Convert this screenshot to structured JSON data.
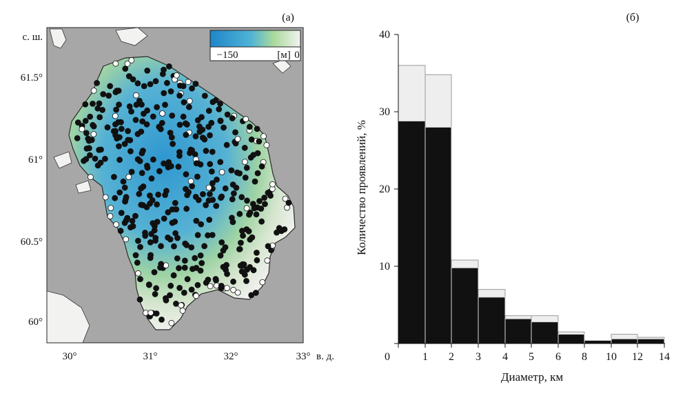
{
  "panel_a": {
    "label": "(а)",
    "lat_unit": "с. ш.",
    "lon_unit": "в. д.",
    "lat_ticks": [
      "61.5°",
      "61°",
      "60.5°",
      "60°"
    ],
    "lon_ticks": [
      "30°",
      "31°",
      "32°",
      "33°"
    ],
    "colorbar": {
      "min_label": "−150",
      "unit_label": "[м]",
      "max_label": "0"
    },
    "colors": {
      "land": "#a7a7a7",
      "water_shallow": "#e9ede8",
      "water_mid": "#9fd3a4",
      "water_deep": "#2f97cf",
      "coast": "#2a2a2a",
      "active_dot": "#111111",
      "inactive_dot": "#ffffff"
    }
  },
  "chart_data": {
    "label": "(б)",
    "type": "bar",
    "xlabel": "Диаметр, км",
    "ylabel": "Количество проявлений, %",
    "x_ticks": [
      "0",
      "1",
      "2",
      "3",
      "4",
      "5",
      "6",
      "8",
      "10",
      "12",
      "14"
    ],
    "y_ticks": [
      "0",
      "10",
      "20",
      "30",
      "40"
    ],
    "ylim": [
      0,
      40
    ],
    "bins": [
      "0–1",
      "1–2",
      "2–3",
      "3–4",
      "4–5",
      "5–6",
      "6–8",
      "8–10",
      "10–12",
      "12–14"
    ],
    "series": [
      {
        "values": [
          28.8,
          28.0,
          9.8,
          6.0,
          3.2,
          2.8,
          1.2,
          0.4,
          0.6,
          0.6
        ],
        "color": "#111111"
      },
      {
        "values": [
          36.0,
          34.8,
          10.8,
          7.0,
          3.6,
          3.6,
          1.5,
          0.4,
          1.2,
          0.8
        ],
        "color": "#eeeeee"
      }
    ]
  }
}
